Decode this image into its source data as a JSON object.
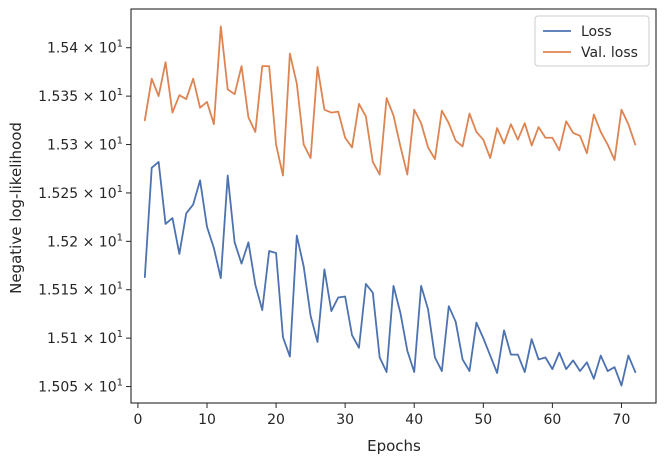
{
  "chart_data": {
    "type": "line",
    "xlabel": "Epochs",
    "ylabel": "Negative log-likelihood",
    "xlim": [
      -1,
      75
    ],
    "ylim": [
      15.033,
      15.44
    ],
    "x_ticks": [
      0,
      10,
      20,
      30,
      40,
      50,
      60,
      70
    ],
    "y_ticks": [
      {
        "value": 15.05,
        "mantissa": "1.505"
      },
      {
        "value": 15.1,
        "mantissa": "1.51"
      },
      {
        "value": 15.15,
        "mantissa": "1.515"
      },
      {
        "value": 15.2,
        "mantissa": "1.52"
      },
      {
        "value": 15.25,
        "mantissa": "1.525"
      },
      {
        "value": 15.3,
        "mantissa": "1.53"
      },
      {
        "value": 15.35,
        "mantissa": "1.535"
      },
      {
        "value": 15.4,
        "mantissa": "1.54"
      }
    ],
    "y_tick_suffix": "× 10",
    "y_tick_exponent": "1",
    "grid": false,
    "legend_position": "top-right",
    "series": [
      {
        "name": "Loss",
        "color": "#4c72b0",
        "x": [
          1,
          2,
          3,
          4,
          5,
          6,
          7,
          8,
          9,
          10,
          11,
          12,
          13,
          14,
          15,
          16,
          17,
          18,
          19,
          20,
          21,
          22,
          23,
          24,
          25,
          26,
          27,
          28,
          29,
          30,
          31,
          32,
          33,
          34,
          35,
          36,
          37,
          38,
          39,
          40,
          41,
          42,
          43,
          44,
          45,
          46,
          47,
          48,
          49,
          50,
          51,
          52,
          53,
          54,
          55,
          56,
          57,
          58,
          59,
          60,
          61,
          62,
          63,
          64,
          65,
          66,
          67,
          68,
          69,
          70,
          71,
          72
        ],
        "values": [
          15.163,
          15.276,
          15.282,
          15.218,
          15.224,
          15.187,
          15.229,
          15.238,
          15.263,
          15.215,
          15.193,
          15.162,
          15.268,
          15.199,
          15.177,
          15.199,
          15.155,
          15.129,
          15.19,
          15.188,
          15.101,
          15.081,
          15.206,
          15.174,
          15.123,
          15.096,
          15.171,
          15.128,
          15.142,
          15.143,
          15.103,
          15.09,
          15.156,
          15.147,
          15.08,
          15.065,
          15.154,
          15.126,
          15.087,
          15.065,
          15.154,
          15.13,
          15.08,
          15.066,
          15.133,
          15.117,
          15.078,
          15.066,
          15.116,
          15.1,
          15.082,
          15.064,
          15.108,
          15.083,
          15.083,
          15.065,
          15.099,
          15.078,
          15.08,
          15.068,
          15.085,
          15.068,
          15.077,
          15.066,
          15.075,
          15.058,
          15.082,
          15.066,
          15.07,
          15.051,
          15.082,
          15.065
        ]
      },
      {
        "name": "Val. loss",
        "color": "#dd8452",
        "x": [
          1,
          2,
          3,
          4,
          5,
          6,
          7,
          8,
          9,
          10,
          11,
          12,
          13,
          14,
          15,
          16,
          17,
          18,
          19,
          20,
          21,
          22,
          23,
          24,
          25,
          26,
          27,
          28,
          29,
          30,
          31,
          32,
          33,
          34,
          35,
          36,
          37,
          38,
          39,
          40,
          41,
          42,
          43,
          44,
          45,
          46,
          47,
          48,
          49,
          50,
          51,
          52,
          53,
          54,
          55,
          56,
          57,
          58,
          59,
          60,
          61,
          62,
          63,
          64,
          65,
          66,
          67,
          68,
          69,
          70,
          71,
          72
        ],
        "values": [
          15.325,
          15.368,
          15.35,
          15.385,
          15.333,
          15.351,
          15.347,
          15.368,
          15.338,
          15.344,
          15.321,
          15.422,
          15.357,
          15.352,
          15.381,
          15.328,
          15.313,
          15.381,
          15.381,
          15.3,
          15.268,
          15.394,
          15.363,
          15.3,
          15.286,
          15.38,
          15.336,
          15.333,
          15.334,
          15.307,
          15.297,
          15.342,
          15.329,
          15.282,
          15.269,
          15.348,
          15.33,
          15.298,
          15.269,
          15.336,
          15.322,
          15.297,
          15.285,
          15.335,
          15.322,
          15.304,
          15.298,
          15.332,
          15.313,
          15.305,
          15.286,
          15.317,
          15.301,
          15.321,
          15.305,
          15.322,
          15.299,
          15.318,
          15.307,
          15.307,
          15.294,
          15.324,
          15.312,
          15.309,
          15.291,
          15.331,
          15.313,
          15.3,
          15.284,
          15.336,
          15.321,
          15.3
        ]
      }
    ]
  }
}
